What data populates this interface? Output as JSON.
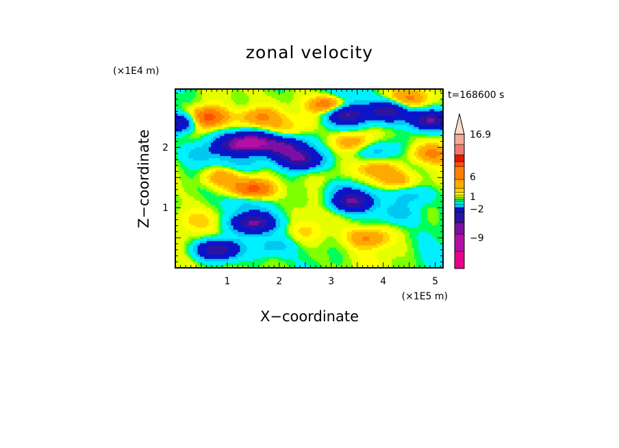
{
  "chart_data": {
    "type": "heatmap",
    "title": "zonal velocity",
    "xlabel": "X−coordinate",
    "ylabel": "Z−coordinate",
    "x_unit": "(×1E5 m)",
    "y_unit": "(×1E4 m)",
    "time_label": "t=168600 s",
    "xlim": [
      0,
      5.15
    ],
    "ylim": [
      0,
      2.97
    ],
    "x_ticks": [
      "1",
      "2",
      "3",
      "4",
      "5"
    ],
    "y_ticks": [
      "1",
      "2"
    ],
    "grid": false,
    "colorbar": {
      "placement": "right",
      "tick_labels": [
        "16.9",
        "6",
        "1",
        "−2",
        "−9"
      ],
      "levels": [
        {
          "color": "#e6008c"
        },
        {
          "color": "#b40fa5"
        },
        {
          "color": "#7d0fa5"
        },
        {
          "color": "#2d14a0"
        },
        {
          "color": "#0a14c8"
        },
        {
          "color": "#00c8f0"
        },
        {
          "color": "#00f0ff"
        },
        {
          "color": "#00ff5a"
        },
        {
          "color": "#80ff00"
        },
        {
          "color": "#e6ff00"
        },
        {
          "color": "#ffff00"
        },
        {
          "color": "#ffd200"
        },
        {
          "color": "#ffaa00"
        },
        {
          "color": "#ff7f00"
        },
        {
          "color": "#ff5000"
        },
        {
          "color": "#e61400"
        },
        {
          "color": "#f0786e"
        },
        {
          "color": "#f5aa9b"
        },
        {
          "color": "#fadccd"
        }
      ]
    },
    "features": [
      {
        "x": 0.6,
        "z": 2.5,
        "value": 6
      },
      {
        "x": 1.6,
        "z": 2.5,
        "value": 3
      },
      {
        "x": 3.0,
        "z": 2.7,
        "value": 6
      },
      {
        "x": 4.5,
        "z": 2.8,
        "value": 3
      },
      {
        "x": 1.5,
        "z": 1.3,
        "value": 6
      },
      {
        "x": 0.9,
        "z": 1.5,
        "value": 3
      },
      {
        "x": 3.9,
        "z": 1.65,
        "value": 3
      },
      {
        "x": 4.9,
        "z": 1.9,
        "value": 3
      },
      {
        "x": 4.2,
        "z": 1.45,
        "value": 3
      },
      {
        "x": 3.4,
        "z": 2.1,
        "value": 3
      },
      {
        "x": 1.9,
        "z": 2.25,
        "value": 1
      },
      {
        "x": 2.5,
        "z": 2.4,
        "value": 1
      },
      {
        "x": 3.7,
        "z": 0.5,
        "value": 3
      },
      {
        "x": 2.5,
        "z": 0.6,
        "value": 1
      },
      {
        "x": 0.4,
        "z": 0.8,
        "value": 1
      },
      {
        "x": 0.3,
        "z": 2.35,
        "value": 3
      },
      {
        "x": 1.2,
        "z": 2.05,
        "value": -9
      },
      {
        "x": 1.6,
        "z": 2.1,
        "value": -9
      },
      {
        "x": 2.1,
        "z": 2.0,
        "value": -9
      },
      {
        "x": 0.1,
        "z": 2.4,
        "value": -9
      },
      {
        "x": 3.3,
        "z": 2.55,
        "value": -9
      },
      {
        "x": 4.1,
        "z": 2.6,
        "value": -9
      },
      {
        "x": 4.9,
        "z": 2.45,
        "value": -9
      },
      {
        "x": 3.4,
        "z": 1.1,
        "value": -9
      },
      {
        "x": 2.4,
        "z": 1.8,
        "value": -9
      },
      {
        "x": 1.5,
        "z": 0.75,
        "value": -9
      },
      {
        "x": 0.8,
        "z": 0.3,
        "value": -9
      },
      {
        "x": 1.4,
        "z": 1.75,
        "value": -2
      },
      {
        "x": 0.5,
        "z": 1.9,
        "value": -2
      },
      {
        "x": 3.9,
        "z": 1.95,
        "value": -2
      },
      {
        "x": 4.6,
        "z": 1.2,
        "value": -2
      },
      {
        "x": 3.2,
        "z": 1.3,
        "value": -2
      },
      {
        "x": 1.3,
        "z": 1.1,
        "value": -2
      },
      {
        "x": 3.3,
        "z": 2.85,
        "value": -2
      },
      {
        "x": 1.9,
        "z": 0.35,
        "value": -2
      },
      {
        "x": 4.3,
        "z": 0.9,
        "value": -2
      }
    ]
  }
}
